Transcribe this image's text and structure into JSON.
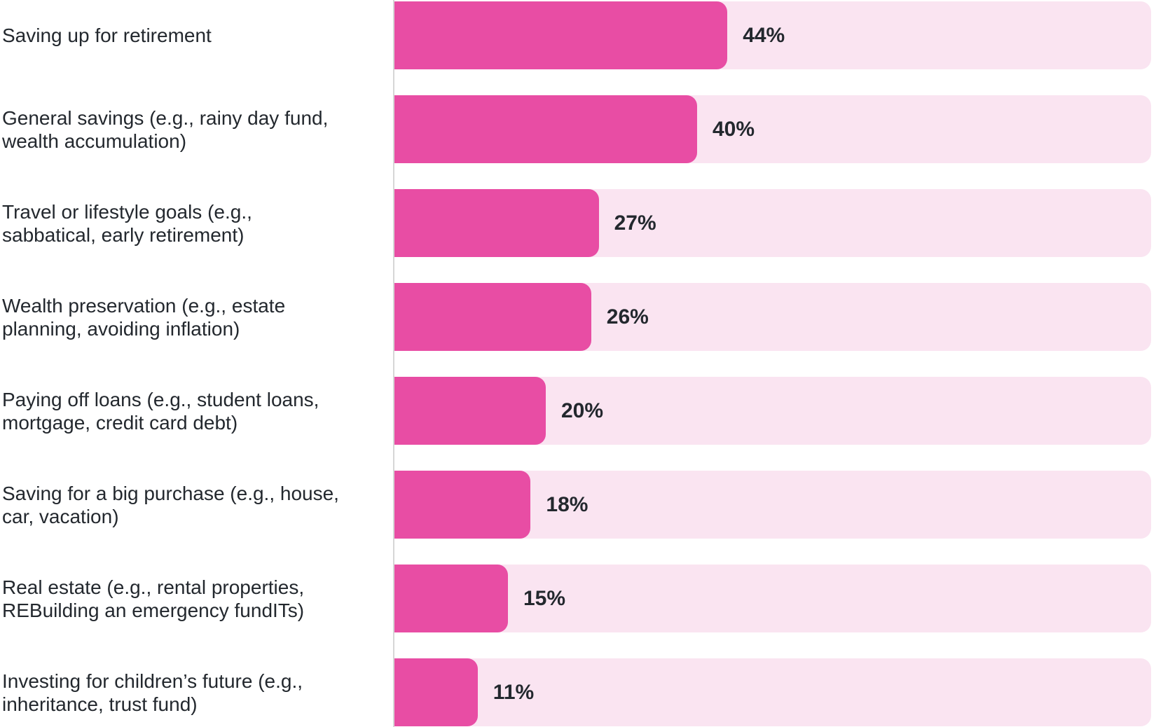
{
  "chart_data": {
    "type": "bar",
    "orientation": "horizontal",
    "title": "",
    "xlabel": "",
    "ylabel": "",
    "xlim": [
      0,
      100
    ],
    "grid": false,
    "legend": "none",
    "value_suffix": "%",
    "categories": [
      "Saving up for retirement",
      "General savings (e.g., rainy day fund,\nwealth accumulation)",
      "Travel or lifestyle goals (e.g.,\nsabbatical, early retirement)",
      "Wealth preservation (e.g., estate\nplanning, avoiding inflation)",
      "Paying off loans (e.g., student loans,\nmortgage, credit card debt)",
      "Saving for a big purchase (e.g., house,\ncar, vacation)",
      "Real estate (e.g., rental properties,\nREBuilding an emergency fundITs)",
      "Investing for children’s future (e.g.,\ninheritance, trust fund)"
    ],
    "values": [
      44,
      40,
      27,
      26,
      20,
      18,
      15,
      11
    ],
    "value_labels": [
      "44%",
      "40%",
      "27%",
      "26%",
      "20%",
      "18%",
      "15%",
      "11%"
    ],
    "colors": {
      "bar_fill": "#e84da4",
      "bar_track": "#fae4f1",
      "text": "#23282e",
      "axis_line": "#d6d6d6",
      "background": "#ffffff"
    }
  }
}
